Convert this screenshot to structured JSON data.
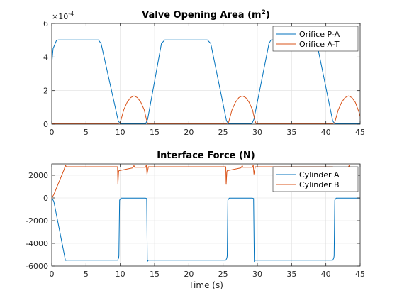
{
  "chart_data": [
    {
      "type": "line",
      "title": "Valve Opening Area (m",
      "title_sup": "2",
      "title_close": ")",
      "xlabel": "",
      "ylabel": "",
      "exponent_label": "×10",
      "exponent_power": "-4",
      "xlim": [
        0,
        45
      ],
      "ylim": [
        0,
        6
      ],
      "xticks": [
        0,
        5,
        10,
        15,
        20,
        25,
        30,
        35,
        40,
        45
      ],
      "yticks": [
        0,
        2,
        4,
        6
      ],
      "xtick_labels": [
        "0",
        "5",
        "10",
        "15",
        "20",
        "25",
        "30",
        "35",
        "40",
        "45"
      ],
      "ytick_labels": [
        "0",
        "2",
        "4",
        "6"
      ],
      "grid": true,
      "legend": "top-right",
      "colors": {
        "series0": "#0072BD",
        "series1": "#D95319"
      },
      "series": [
        {
          "name": "Orifice P-A",
          "x": [
            0,
            0.2,
            0.7,
            1.0,
            6.8,
            7.2,
            9.7,
            10.0,
            10.2,
            13.5,
            13.7,
            14.0,
            16.0,
            16.5,
            22.7,
            23.2,
            25.5,
            25.8,
            29.2,
            29.5,
            31.7,
            32.0,
            38.2,
            38.7,
            41.0,
            41.3,
            45.0
          ],
          "y": [
            3.6,
            4.5,
            5.0,
            5.02,
            5.02,
            4.8,
            0.2,
            0.02,
            0.02,
            0.02,
            0.02,
            0.3,
            4.8,
            5.02,
            5.02,
            4.8,
            0.2,
            0.02,
            0.02,
            0.3,
            4.8,
            5.02,
            5.02,
            4.8,
            0.2,
            0.02,
            0.02
          ]
        },
        {
          "name": "Orifice A-T",
          "x": [
            0,
            9.7,
            10.0,
            10.5,
            11.0,
            11.5,
            12.0,
            12.5,
            13.0,
            13.5,
            13.8,
            14.0,
            25.5,
            25.8,
            26.3,
            26.8,
            27.3,
            27.8,
            28.3,
            28.8,
            29.3,
            29.6,
            29.8,
            41.0,
            41.3,
            41.8,
            42.3,
            42.8,
            43.3,
            43.8,
            44.3,
            44.8,
            45.0
          ],
          "y": [
            0.03,
            0.03,
            0.1,
            0.85,
            1.3,
            1.58,
            1.68,
            1.58,
            1.3,
            0.85,
            0.3,
            0.03,
            0.03,
            0.1,
            0.85,
            1.3,
            1.58,
            1.68,
            1.58,
            1.3,
            0.85,
            0.3,
            0.03,
            0.03,
            0.1,
            0.85,
            1.3,
            1.58,
            1.68,
            1.58,
            1.3,
            0.75,
            0.45
          ]
        }
      ]
    },
    {
      "type": "line",
      "title": "Interface Force (N)",
      "xlabel": "Time (s)",
      "ylabel": "",
      "xlim": [
        0,
        45
      ],
      "ylim": [
        -6000,
        3000
      ],
      "xticks": [
        0,
        5,
        10,
        15,
        20,
        25,
        30,
        35,
        40,
        45
      ],
      "yticks": [
        -6000,
        -4000,
        -2000,
        0,
        2000
      ],
      "xtick_labels": [
        "0",
        "5",
        "10",
        "15",
        "20",
        "25",
        "30",
        "35",
        "40",
        "45"
      ],
      "ytick_labels": [
        "-6000",
        "-4000",
        "-2000",
        "0",
        "2000"
      ],
      "grid": true,
      "legend": "top-right",
      "colors": {
        "series0": "#0072BD",
        "series1": "#D95319"
      },
      "series": [
        {
          "name": "Cylinder A",
          "x": [
            0,
            0.3,
            2.0,
            2.2,
            9.6,
            9.75,
            9.8,
            9.9,
            10.1,
            13.7,
            13.85,
            13.95,
            14.1,
            25.4,
            25.55,
            25.6,
            25.7,
            25.9,
            29.3,
            29.45,
            29.55,
            29.7,
            41.0,
            41.15,
            41.2,
            41.3,
            41.5,
            45.0
          ],
          "y": [
            0,
            -300,
            -5500,
            -5480,
            -5480,
            -5300,
            -5100,
            -200,
            -20,
            -20,
            -50,
            -5600,
            -5480,
            -5480,
            -5300,
            -5100,
            -200,
            -20,
            -20,
            -50,
            -5600,
            -5480,
            -5480,
            -5300,
            -5100,
            -200,
            -20,
            -20
          ]
        },
        {
          "name": "Cylinder B",
          "x": [
            0,
            0.3,
            1.8,
            2.0,
            2.1,
            9.6,
            9.65,
            9.75,
            9.8,
            11.8,
            12.0,
            12.1,
            13.7,
            13.8,
            13.9,
            14.1,
            25.4,
            25.45,
            25.55,
            25.6,
            27.6,
            27.8,
            27.9,
            29.3,
            29.4,
            29.5,
            29.7,
            41.0,
            41.05,
            41.15,
            41.2,
            43.2,
            43.4,
            43.5,
            44.0,
            45.0
          ],
          "y": [
            0,
            300,
            2500,
            2900,
            2750,
            2750,
            1200,
            2300,
            2400,
            2650,
            2850,
            2700,
            2700,
            2900,
            2100,
            2750,
            2750,
            1200,
            2300,
            2400,
            2650,
            2850,
            2700,
            2700,
            2900,
            2100,
            2750,
            2750,
            1200,
            2300,
            2400,
            2650,
            2850,
            2700,
            2720,
            2720
          ]
        }
      ]
    }
  ]
}
